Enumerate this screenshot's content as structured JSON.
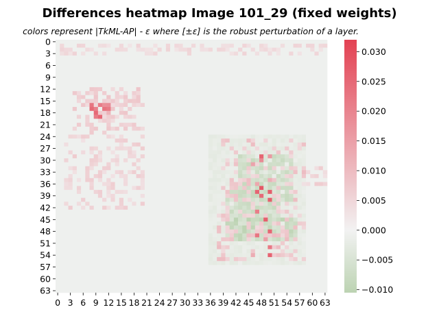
{
  "chart_data": {
    "type": "heatmap",
    "title": "Differences heatmap Image 101_29 (fixed weights)",
    "subtitle": "colors represent |TkML-AP| - ε where [±ε] is the robust perturbation of a layer.",
    "xlabel": "",
    "ylabel": "",
    "rows": 64,
    "cols": 64,
    "x_tick_labels": [
      "0",
      "3",
      "6",
      "9",
      "12",
      "15",
      "18",
      "21",
      "24",
      "27",
      "30",
      "33",
      "36",
      "39",
      "42",
      "45",
      "48",
      "51",
      "54",
      "57",
      "60",
      "63"
    ],
    "y_tick_labels": [
      "0",
      "3",
      "6",
      "9",
      "12",
      "15",
      "18",
      "21",
      "24",
      "27",
      "30",
      "33",
      "36",
      "39",
      "42",
      "45",
      "48",
      "51",
      "54",
      "57",
      "60",
      "63"
    ],
    "colorbar": {
      "min": -0.0105,
      "max": 0.032,
      "ticks": [
        "0.030",
        "0.025",
        "0.020",
        "0.015",
        "0.010",
        "0.005",
        "0.000",
        "−0.005",
        "−0.010"
      ],
      "tick_values": [
        0.03,
        0.025,
        0.02,
        0.015,
        0.01,
        0.005,
        0.0,
        -0.005,
        -0.01
      ],
      "low_color": "#bcd3b2",
      "mid_color": "#f2f2f2",
      "high_color": "#e34253"
    },
    "background_value": -0.0007,
    "regions": [
      {
        "label": "top-row-speckle",
        "rows": [
          1,
          3
        ],
        "cols": [
          1,
          63
        ],
        "value": 0.004,
        "density": 0.45
      },
      {
        "label": "left-blob",
        "rows": [
          12,
          23
        ],
        "cols": [
          4,
          20
        ],
        "value": 0.006,
        "density": 0.45
      },
      {
        "label": "left-blob-lower",
        "rows": [
          24,
          42
        ],
        "cols": [
          2,
          20
        ],
        "value": 0.005,
        "density": 0.35
      },
      {
        "label": "left-blob-hotspot",
        "rows": [
          16,
          19
        ],
        "cols": [
          8,
          12
        ],
        "value": 0.019,
        "density": 0.6
      },
      {
        "label": "right-shape-halo",
        "rows": [
          24,
          56
        ],
        "cols": [
          36,
          58
        ],
        "value": -0.002,
        "density": 1.0
      },
      {
        "label": "right-shape-upper-arm",
        "rows": [
          29,
          40
        ],
        "cols": [
          43,
          55
        ],
        "value": -0.006,
        "density": 0.9
      },
      {
        "label": "right-shape-diagonal",
        "rows": [
          38,
          47
        ],
        "cols": [
          40,
          52
        ],
        "value": -0.006,
        "density": 0.9
      },
      {
        "label": "right-shape-base",
        "rows": [
          45,
          50
        ],
        "cols": [
          40,
          56
        ],
        "value": -0.0075,
        "density": 0.95
      },
      {
        "label": "right-shape-pink-edges",
        "rows": [
          25,
          55
        ],
        "cols": [
          38,
          58
        ],
        "value": 0.007,
        "density": 0.25
      },
      {
        "label": "right-shape-hotspots",
        "rows": [
          29,
          54
        ],
        "cols": [
          46,
          50
        ],
        "value": 0.02,
        "density": 0.12
      },
      {
        "label": "right-side-speckle",
        "rows": [
          32,
          36
        ],
        "cols": [
          57,
          63
        ],
        "value": 0.005,
        "density": 0.4
      }
    ]
  }
}
